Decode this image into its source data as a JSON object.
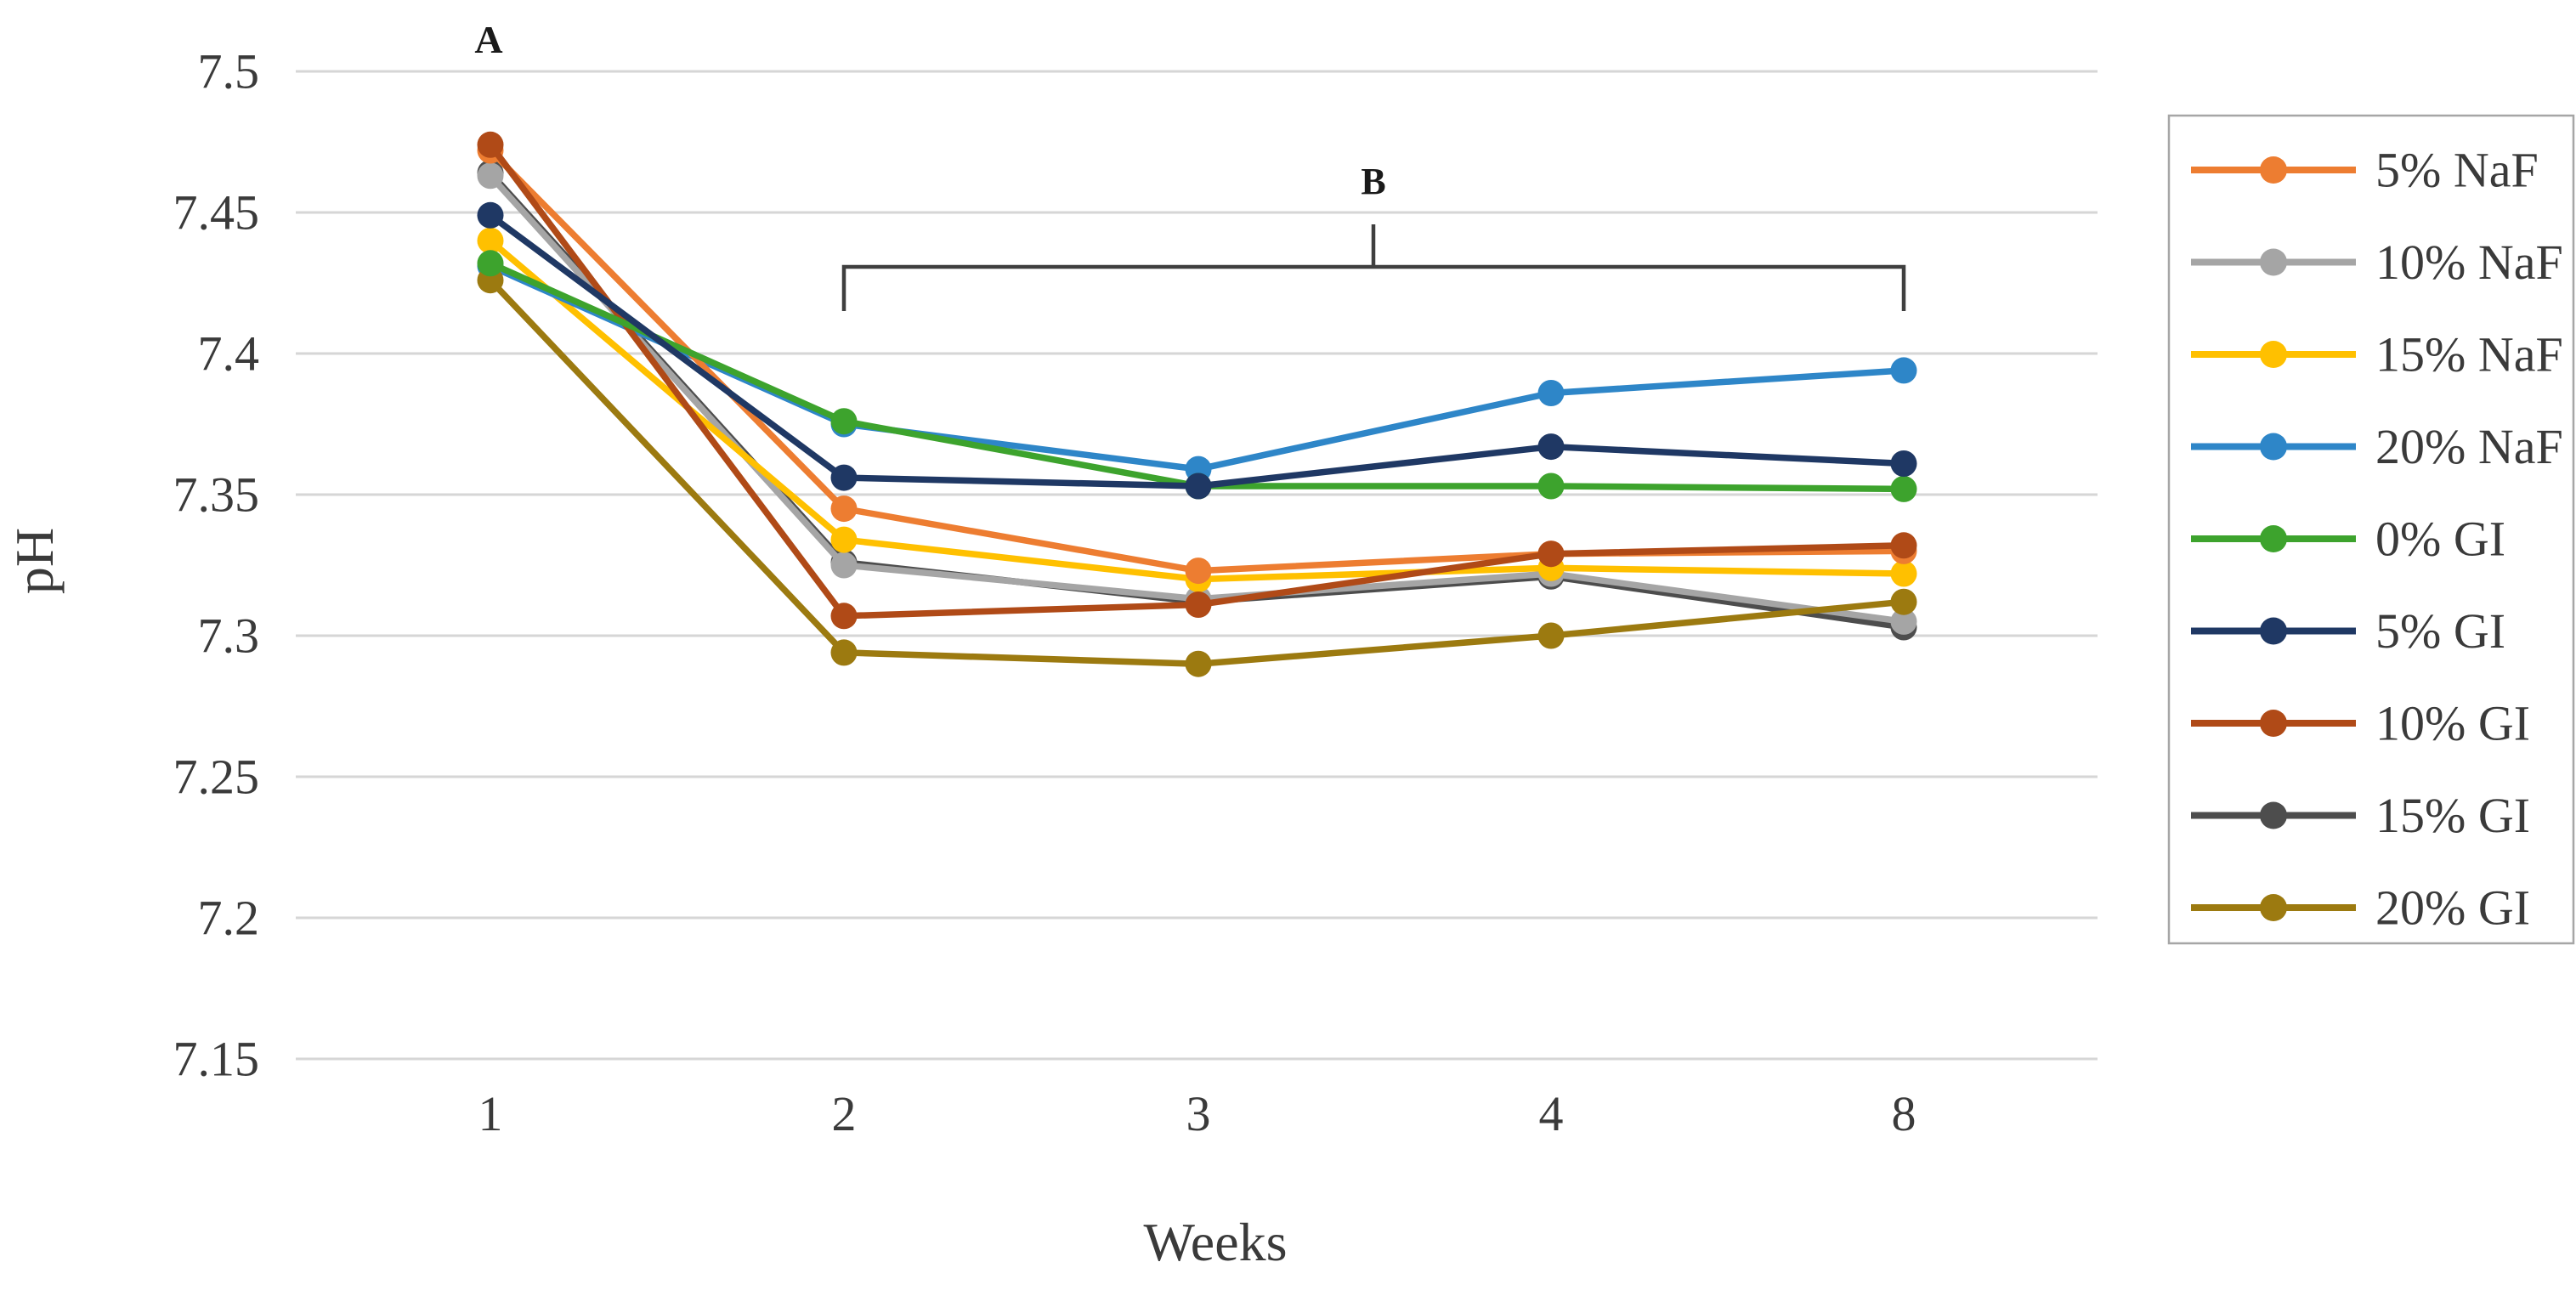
{
  "chart_data": {
    "type": "line",
    "title": "",
    "xlabel": "Weeks",
    "ylabel": "pH",
    "categories": [
      "1",
      "2",
      "3",
      "4",
      "8"
    ],
    "ylim": [
      7.15,
      7.5
    ],
    "grid": true,
    "legend_position": "right",
    "yticks": [
      "7.5",
      "7.45",
      "7.4",
      "7.35",
      "7.3",
      "7.25",
      "7.2",
      "7.15"
    ],
    "annotations": {
      "a_label": "A",
      "b_label": "B"
    },
    "series": [
      {
        "name": "5% NaF",
        "color": "#ED7D31",
        "values": [
          7.472,
          7.345,
          7.323,
          7.329,
          7.33
        ]
      },
      {
        "name": "10% NaF",
        "color": "#A5A5A5",
        "values": [
          7.463,
          7.325,
          7.313,
          7.322,
          7.305
        ]
      },
      {
        "name": "15% NaF",
        "color": "#FFC000",
        "values": [
          7.44,
          7.334,
          7.32,
          7.324,
          7.322
        ]
      },
      {
        "name": "20% NaF",
        "color": "#2E86C8",
        "values": [
          7.431,
          7.375,
          7.359,
          7.386,
          7.394
        ]
      },
      {
        "name": "0% GI",
        "color": "#3DA32D",
        "values": [
          7.432,
          7.376,
          7.353,
          7.353,
          7.352
        ]
      },
      {
        "name": "5% GI",
        "color": "#1F3864",
        "values": [
          7.449,
          7.356,
          7.353,
          7.367,
          7.361
        ]
      },
      {
        "name": "10% GI",
        "color": "#B04A17",
        "values": [
          7.474,
          7.307,
          7.311,
          7.329,
          7.332
        ]
      },
      {
        "name": "15% GI",
        "color": "#4D4D4D",
        "values": [
          7.464,
          7.326,
          7.312,
          7.321,
          7.303
        ]
      },
      {
        "name": "20% GI",
        "color": "#9C7A10",
        "values": [
          7.426,
          7.294,
          7.29,
          7.3,
          7.312
        ]
      }
    ],
    "colors": {
      "grid": "#D6D6D6",
      "text": "#3A3A3A",
      "bracket": "#3F3F3F",
      "legend_border": "#A6A6A6"
    }
  }
}
